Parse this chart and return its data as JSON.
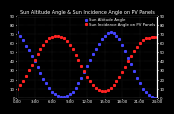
{
  "title": "Sun Altitude Angle & Sun Incidence Angle on PV Panels",
  "background_color": "#000000",
  "plot_bg_color": "#000000",
  "grid_color": "#444444",
  "series": [
    {
      "label": "Sun Altitude Angle",
      "color": "#4444ff",
      "marker": "s",
      "markersize": 1.2,
      "x": [
        0,
        0.5,
        1,
        1.5,
        2,
        2.5,
        3,
        3.5,
        4,
        4.5,
        5,
        5.5,
        6,
        6.5,
        7,
        7.5,
        8,
        8.5,
        9,
        9.5,
        10,
        10.5,
        11,
        11.5,
        12,
        12.5,
        13,
        13.5,
        14,
        14.5,
        15,
        15.5,
        16,
        16.5,
        17,
        17.5,
        18,
        18.5,
        19,
        19.5,
        20,
        20.5,
        21,
        21.5,
        22,
        22.5,
        23,
        23.5,
        24
      ],
      "y": [
        72,
        68,
        63,
        57,
        52,
        46,
        40,
        34,
        27,
        21,
        16,
        11,
        7,
        4,
        2,
        1,
        1,
        2,
        4,
        7,
        11,
        16,
        22,
        28,
        35,
        41,
        48,
        54,
        59,
        64,
        68,
        71,
        72,
        71,
        68,
        64,
        58,
        51,
        44,
        37,
        29,
        22,
        16,
        10,
        6,
        3,
        1,
        0,
        0
      ]
    },
    {
      "label": "Sun Incidence Angle on PV Panels",
      "color": "#ff2222",
      "marker": "s",
      "markersize": 1.2,
      "x": [
        0,
        0.5,
        1,
        1.5,
        2,
        2.5,
        3,
        3.5,
        4,
        4.5,
        5,
        5.5,
        6,
        6.5,
        7,
        7.5,
        8,
        8.5,
        9,
        9.5,
        10,
        10.5,
        11,
        11.5,
        12,
        12.5,
        13,
        13.5,
        14,
        14.5,
        15,
        15.5,
        16,
        16.5,
        17,
        17.5,
        18,
        18.5,
        19,
        19.5,
        20,
        20.5,
        21,
        21.5,
        22,
        22.5,
        23,
        23.5,
        24
      ],
      "y": [
        10,
        14,
        19,
        24,
        30,
        36,
        42,
        48,
        53,
        58,
        62,
        65,
        67,
        68,
        68,
        67,
        65,
        62,
        58,
        53,
        47,
        41,
        35,
        29,
        23,
        18,
        14,
        11,
        9,
        8,
        8,
        9,
        11,
        14,
        18,
        23,
        28,
        34,
        40,
        46,
        51,
        56,
        60,
        63,
        65,
        66,
        67,
        67,
        67
      ]
    }
  ],
  "ylim": [
    0,
    90
  ],
  "xlim": [
    0,
    24
  ],
  "yticks": [
    0,
    10,
    20,
    30,
    40,
    50,
    60,
    70,
    80,
    90
  ],
  "xtick_positions": [
    0,
    3,
    6,
    9,
    12,
    15,
    18,
    21,
    24
  ],
  "xtick_labels": [
    "0:00",
    "3:00",
    "6:00",
    "9:00",
    "12:00",
    "15:00",
    "18:00",
    "21:00",
    "24:00"
  ],
  "title_fontsize": 3.5,
  "tick_fontsize": 2.8,
  "legend_fontsize": 2.8
}
